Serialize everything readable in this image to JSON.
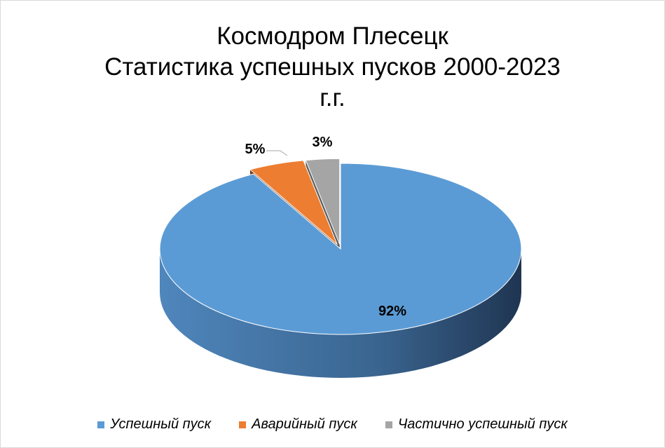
{
  "chart_data": {
    "type": "pie",
    "title_lines": [
      "Космодром Плесецк",
      "Статистика успешных пусков 2000-2023",
      "г.г."
    ],
    "slices": [
      {
        "name": "Успешный пуск",
        "value": 92,
        "label": "92%",
        "color": "#5b9bd5"
      },
      {
        "name": "Аварийный пуск",
        "value": 5,
        "label": "5%",
        "color": "#ed7d31"
      },
      {
        "name": "Частично успешный пуск",
        "value": 3,
        "label": "3%",
        "color": "#a5a5a5"
      }
    ],
    "legend_position": "bottom",
    "style": "3d-exploded"
  }
}
